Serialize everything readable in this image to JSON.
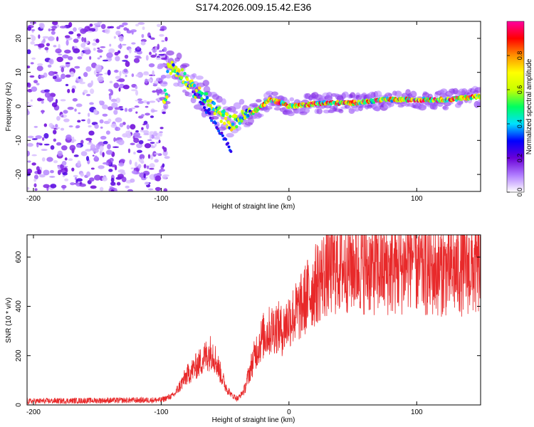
{
  "figure": {
    "title": "S174.2026.009.15.42.E36"
  },
  "chart_data": [
    {
      "type": "heatmap",
      "name": "spectrogram",
      "xlabel": "Height of straight line (km)",
      "ylabel": "Frequency (Hz)",
      "xlim": [
        -205,
        150
      ],
      "ylim": [
        -25,
        25
      ],
      "x_ticks": [
        -200,
        -100,
        0,
        100
      ],
      "y_ticks": [
        -20,
        -10,
        0,
        10,
        20
      ],
      "x_tick_labels": [
        "-200",
        "-100",
        "0",
        "100"
      ],
      "y_tick_labels": [
        "-20",
        "-10",
        "0",
        "10",
        "20"
      ],
      "noise_region_x": [
        -205,
        -95
      ],
      "signal_track": [
        {
          "x": -95,
          "y": 12
        },
        {
          "x": -85,
          "y": 10
        },
        {
          "x": -75,
          "y": 5
        },
        {
          "x": -65,
          "y": 2
        },
        {
          "x": -55,
          "y": -2
        },
        {
          "x": -45,
          "y": -5
        },
        {
          "x": -35,
          "y": -3
        },
        {
          "x": -25,
          "y": -1
        },
        {
          "x": -15,
          "y": 2
        },
        {
          "x": -5,
          "y": 1
        },
        {
          "x": 0,
          "y": 0
        },
        {
          "x": 25,
          "y": 1
        },
        {
          "x": 50,
          "y": 1
        },
        {
          "x": 75,
          "y": 2
        },
        {
          "x": 100,
          "y": 2
        },
        {
          "x": 125,
          "y": 2
        },
        {
          "x": 150,
          "y": 3
        }
      ],
      "colorbar": {
        "label": "Normalized spectral amplitude",
        "range": [
          0,
          1
        ],
        "ticks": [
          0.0,
          0.2,
          0.4,
          0.6,
          0.8
        ],
        "tick_labels": [
          "0.0",
          "0.2",
          "0.4",
          "0.6",
          "0.8"
        ],
        "colors": [
          "#ffffff",
          "#b07cff",
          "#6a00d8",
          "#0000ff",
          "#00e0ff",
          "#00ff60",
          "#c8ff00",
          "#ffff00",
          "#ff9000",
          "#ff0000",
          "#ff00a0"
        ]
      }
    },
    {
      "type": "line",
      "name": "snr",
      "xlabel": "Height of straight line (km)",
      "ylabel": "SNR (10 * v/v)",
      "xlim": [
        -205,
        150
      ],
      "ylim": [
        0,
        690
      ],
      "x_ticks": [
        -200,
        -100,
        0,
        100
      ],
      "y_ticks": [
        0,
        200,
        400,
        600
      ],
      "x_tick_labels": [
        "-200",
        "-100",
        "0",
        "100"
      ],
      "y_tick_labels": [
        "0",
        "200",
        "400",
        "600"
      ],
      "color": "#e8292a",
      "series": [
        {
          "name": "SNR",
          "x": [
            -205,
            -150,
            -100,
            -90,
            -80,
            -70,
            -65,
            -60,
            -55,
            -50,
            -45,
            -40,
            -35,
            -30,
            -25,
            -20,
            -15,
            -10,
            -5,
            0,
            5,
            10,
            15,
            20,
            25,
            30,
            40,
            50,
            60,
            70,
            80,
            90,
            95,
            98,
            100,
            110,
            120,
            130,
            140,
            150
          ],
          "values": [
            15,
            18,
            20,
            40,
            120,
            170,
            200,
            220,
            150,
            80,
            40,
            25,
            60,
            150,
            230,
            280,
            300,
            320,
            300,
            350,
            370,
            400,
            450,
            480,
            520,
            540,
            560,
            570,
            560,
            550,
            550,
            560,
            600,
            620,
            560,
            540,
            550,
            545,
            555,
            550
          ]
        }
      ]
    }
  ]
}
